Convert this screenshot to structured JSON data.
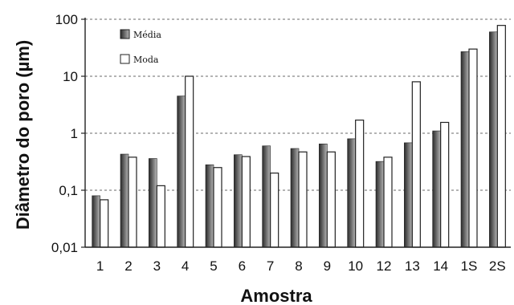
{
  "chart_data": {
    "type": "bar",
    "xlabel": "Amostra",
    "ylabel": "Diâmetro do poro (µm)",
    "y_scale": "log",
    "ylim": [
      0.01,
      100
    ],
    "grid": "horizontal dashed at decades",
    "legend_position": "top-left",
    "y_ticks": [
      "0,01",
      "0,1",
      "1",
      "10",
      "100"
    ],
    "categories": [
      "1",
      "2",
      "3",
      "4",
      "5",
      "6",
      "7",
      "8",
      "9",
      "10",
      "12",
      "13",
      "14",
      "1S",
      "2S"
    ],
    "series": [
      {
        "name": "Média",
        "style": "gradient-dark",
        "values": [
          0.08,
          0.43,
          0.36,
          4.5,
          0.28,
          0.42,
          0.6,
          0.54,
          0.65,
          0.8,
          0.32,
          0.68,
          1.1,
          27,
          60
        ]
      },
      {
        "name": "Moda",
        "style": "white",
        "values": [
          0.068,
          0.38,
          0.12,
          10,
          0.25,
          0.39,
          0.2,
          0.47,
          0.47,
          1.7,
          0.38,
          8,
          1.55,
          30,
          78
        ]
      }
    ]
  },
  "colors": {
    "bar_dark": "#2a2a2a",
    "bar_light": "#b5b5b5",
    "bar_outline": "#222222",
    "grid": "#888888"
  }
}
